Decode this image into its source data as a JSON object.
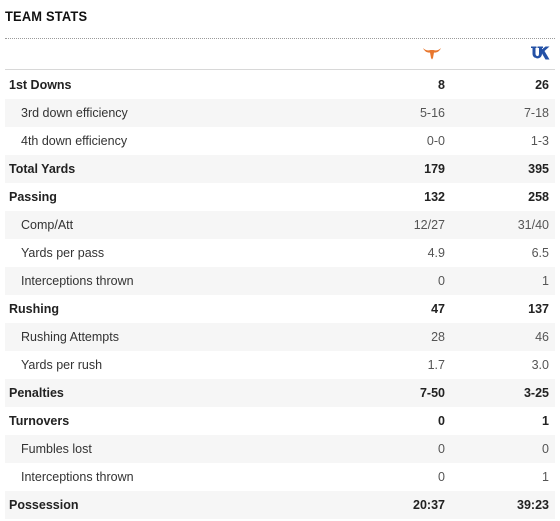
{
  "section": {
    "title": "TEAM STATS"
  },
  "teams": {
    "home": {
      "logo_icon": "longhorn-icon",
      "color": "#e8772e"
    },
    "away": {
      "logo_icon": "uk-logo-icon",
      "color": "#2451a6"
    }
  },
  "rows": [
    {
      "label": "1st Downs",
      "home": "8",
      "away": "26",
      "type": "main"
    },
    {
      "label": "3rd down efficiency",
      "home": "5-16",
      "away": "7-18",
      "type": "sub"
    },
    {
      "label": "4th down efficiency",
      "home": "0-0",
      "away": "1-3",
      "type": "sub"
    },
    {
      "label": "Total Yards",
      "home": "179",
      "away": "395",
      "type": "main"
    },
    {
      "label": "Passing",
      "home": "132",
      "away": "258",
      "type": "main"
    },
    {
      "label": "Comp/Att",
      "home": "12/27",
      "away": "31/40",
      "type": "sub"
    },
    {
      "label": "Yards per pass",
      "home": "4.9",
      "away": "6.5",
      "type": "sub"
    },
    {
      "label": "Interceptions thrown",
      "home": "0",
      "away": "1",
      "type": "sub"
    },
    {
      "label": "Rushing",
      "home": "47",
      "away": "137",
      "type": "main"
    },
    {
      "label": "Rushing Attempts",
      "home": "28",
      "away": "46",
      "type": "sub"
    },
    {
      "label": "Yards per rush",
      "home": "1.7",
      "away": "3.0",
      "type": "sub"
    },
    {
      "label": "Penalties",
      "home": "7-50",
      "away": "3-25",
      "type": "main"
    },
    {
      "label": "Turnovers",
      "home": "0",
      "away": "1",
      "type": "main"
    },
    {
      "label": "Fumbles lost",
      "home": "0",
      "away": "0",
      "type": "sub"
    },
    {
      "label": "Interceptions thrown",
      "home": "0",
      "away": "1",
      "type": "sub"
    },
    {
      "label": "Possession",
      "home": "20:37",
      "away": "39:23",
      "type": "main"
    }
  ]
}
